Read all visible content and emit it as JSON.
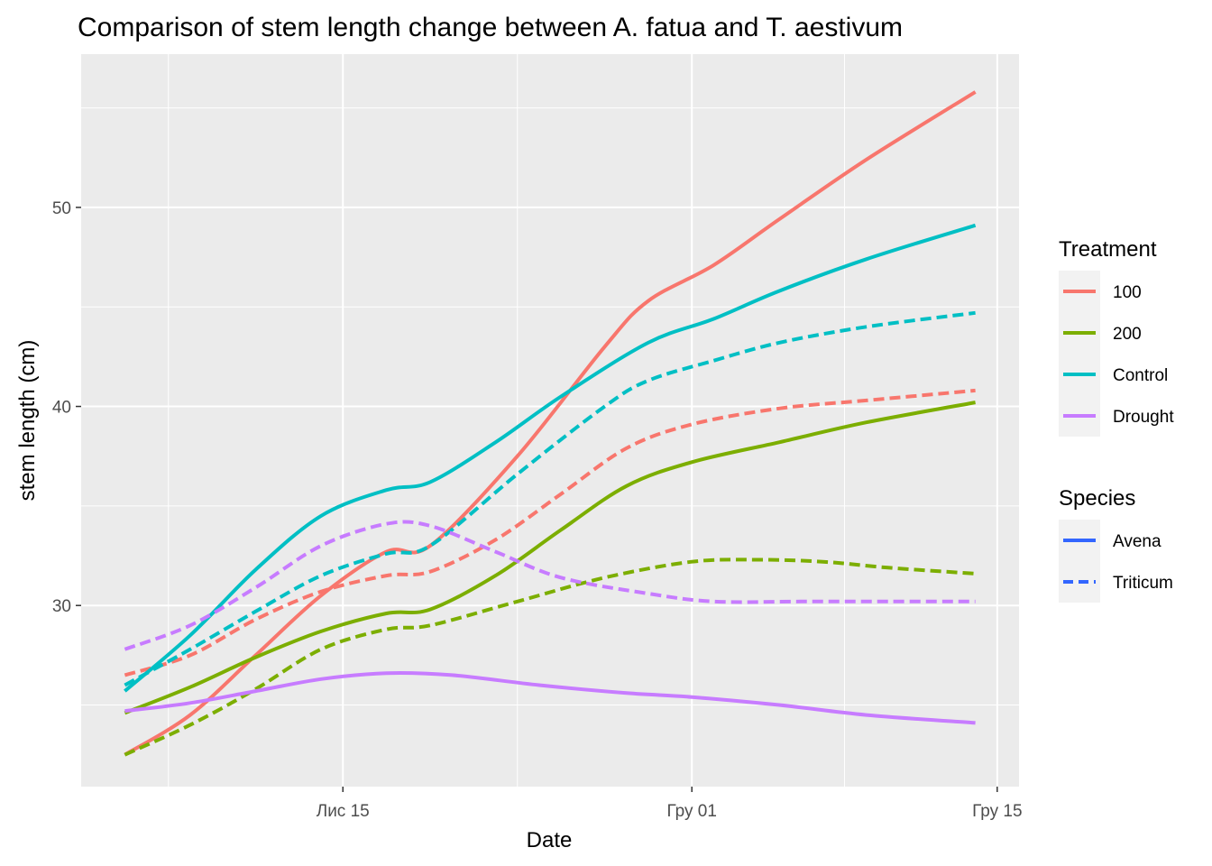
{
  "chart_data": {
    "type": "line",
    "title": "Comparison of stem length change between A. fatua and T. aestivum",
    "xlabel": "Date",
    "ylabel": "stem length (cm)",
    "x_ticks": [
      {
        "date": "2021-11-15",
        "label": "Лис 15"
      },
      {
        "date": "2021-12-01",
        "label": "Гру 01"
      },
      {
        "date": "2021-12-15",
        "label": "Гру 15"
      }
    ],
    "x_range": [
      "2021-11-03",
      "2021-12-16"
    ],
    "y_ticks": [
      30,
      40,
      50
    ],
    "ylim": [
      20.9,
      57.7
    ],
    "grid": true,
    "legend": [
      {
        "title": "Treatment",
        "items": [
          {
            "label": "100",
            "color": "#F8766D"
          },
          {
            "label": "200",
            "color": "#7CAE00"
          },
          {
            "label": "Control",
            "color": "#00BFC4"
          },
          {
            "label": "Drought",
            "color": "#C77CFF"
          }
        ]
      },
      {
        "title": "Species",
        "items": [
          {
            "label": "Avena",
            "color": "#3366FF",
            "linetype": "solid"
          },
          {
            "label": "Triticum",
            "color": "#3366FF",
            "linetype": "dashed"
          }
        ]
      }
    ],
    "series": [
      {
        "treatment": "100",
        "species": "Avena",
        "color": "#F8766D",
        "linetype": "solid",
        "x": [
          "2021-11-05",
          "2021-11-08",
          "2021-11-11",
          "2021-11-14",
          "2021-11-17",
          "2021-11-19",
          "2021-11-23",
          "2021-11-27",
          "2021-11-29",
          "2021-12-02",
          "2021-12-05",
          "2021-12-09",
          "2021-12-14"
        ],
        "y": [
          22.5,
          24.5,
          27.5,
          30.5,
          32.7,
          33.0,
          37.5,
          43.0,
          45.3,
          47.1,
          49.4,
          52.4,
          55.8
        ]
      },
      {
        "treatment": "100",
        "species": "Triticum",
        "color": "#F8766D",
        "linetype": "dashed",
        "x": [
          "2021-11-05",
          "2021-11-08",
          "2021-11-11",
          "2021-11-14",
          "2021-11-17",
          "2021-11-19",
          "2021-11-22",
          "2021-11-25",
          "2021-11-28",
          "2021-12-01",
          "2021-12-05",
          "2021-12-09",
          "2021-12-14"
        ],
        "y": [
          26.5,
          27.5,
          29.3,
          30.7,
          31.5,
          31.7,
          33.3,
          35.6,
          37.9,
          39.1,
          39.9,
          40.3,
          40.8
        ]
      },
      {
        "treatment": "200",
        "species": "Avena",
        "color": "#7CAE00",
        "linetype": "solid",
        "x": [
          "2021-11-05",
          "2021-11-08",
          "2021-11-11",
          "2021-11-14",
          "2021-11-17",
          "2021-11-19",
          "2021-11-22",
          "2021-11-25",
          "2021-11-28",
          "2021-12-01",
          "2021-12-05",
          "2021-12-09",
          "2021-12-14"
        ],
        "y": [
          24.6,
          25.9,
          27.4,
          28.7,
          29.6,
          29.8,
          31.5,
          33.8,
          36.0,
          37.2,
          38.2,
          39.2,
          40.2
        ]
      },
      {
        "treatment": "200",
        "species": "Triticum",
        "color": "#7CAE00",
        "linetype": "dashed",
        "x": [
          "2021-11-05",
          "2021-11-08",
          "2021-11-11",
          "2021-11-14",
          "2021-11-17",
          "2021-11-19",
          "2021-11-23",
          "2021-11-27",
          "2021-12-01",
          "2021-12-04",
          "2021-12-07",
          "2021-12-10",
          "2021-12-14"
        ],
        "y": [
          22.5,
          24.0,
          25.8,
          27.8,
          28.8,
          29.0,
          30.2,
          31.4,
          32.2,
          32.3,
          32.2,
          31.9,
          31.6
        ]
      },
      {
        "treatment": "Control",
        "species": "Avena",
        "color": "#00BFC4",
        "linetype": "solid",
        "x": [
          "2021-11-05",
          "2021-11-08",
          "2021-11-11",
          "2021-11-14",
          "2021-11-17",
          "2021-11-19",
          "2021-11-22",
          "2021-11-25",
          "2021-11-29",
          "2021-12-02",
          "2021-12-05",
          "2021-12-09",
          "2021-12-14"
        ],
        "y": [
          25.7,
          28.5,
          31.8,
          34.5,
          35.8,
          36.2,
          38.2,
          40.5,
          43.2,
          44.4,
          45.8,
          47.4,
          49.1
        ]
      },
      {
        "treatment": "Control",
        "species": "Triticum",
        "color": "#00BFC4",
        "linetype": "dashed",
        "x": [
          "2021-11-05",
          "2021-11-08",
          "2021-11-11",
          "2021-11-14",
          "2021-11-17",
          "2021-11-19",
          "2021-11-23",
          "2021-11-27",
          "2021-11-29",
          "2021-12-02",
          "2021-12-05",
          "2021-12-09",
          "2021-12-14"
        ],
        "y": [
          26.0,
          27.8,
          29.7,
          31.5,
          32.6,
          33.0,
          36.6,
          40.0,
          41.3,
          42.3,
          43.2,
          44.0,
          44.7
        ]
      },
      {
        "treatment": "Drought",
        "species": "Avena",
        "color": "#C77CFF",
        "linetype": "solid",
        "x": [
          "2021-11-05",
          "2021-11-08",
          "2021-11-11",
          "2021-11-14",
          "2021-11-17",
          "2021-11-20",
          "2021-11-24",
          "2021-11-28",
          "2021-12-01",
          "2021-12-05",
          "2021-12-09",
          "2021-12-14"
        ],
        "y": [
          24.7,
          25.1,
          25.7,
          26.3,
          26.6,
          26.5,
          26.0,
          25.6,
          25.4,
          25.0,
          24.5,
          24.1
        ]
      },
      {
        "treatment": "Drought",
        "species": "Triticum",
        "color": "#C77CFF",
        "linetype": "dashed",
        "x": [
          "2021-11-05",
          "2021-11-08",
          "2021-11-11",
          "2021-11-14",
          "2021-11-17",
          "2021-11-19",
          "2021-11-22",
          "2021-11-25",
          "2021-11-29",
          "2021-12-02",
          "2021-12-06",
          "2021-12-10",
          "2021-12-14"
        ],
        "y": [
          27.8,
          29.0,
          30.9,
          33.0,
          34.1,
          34.0,
          32.7,
          31.4,
          30.6,
          30.2,
          30.2,
          30.2,
          30.2
        ]
      }
    ]
  }
}
